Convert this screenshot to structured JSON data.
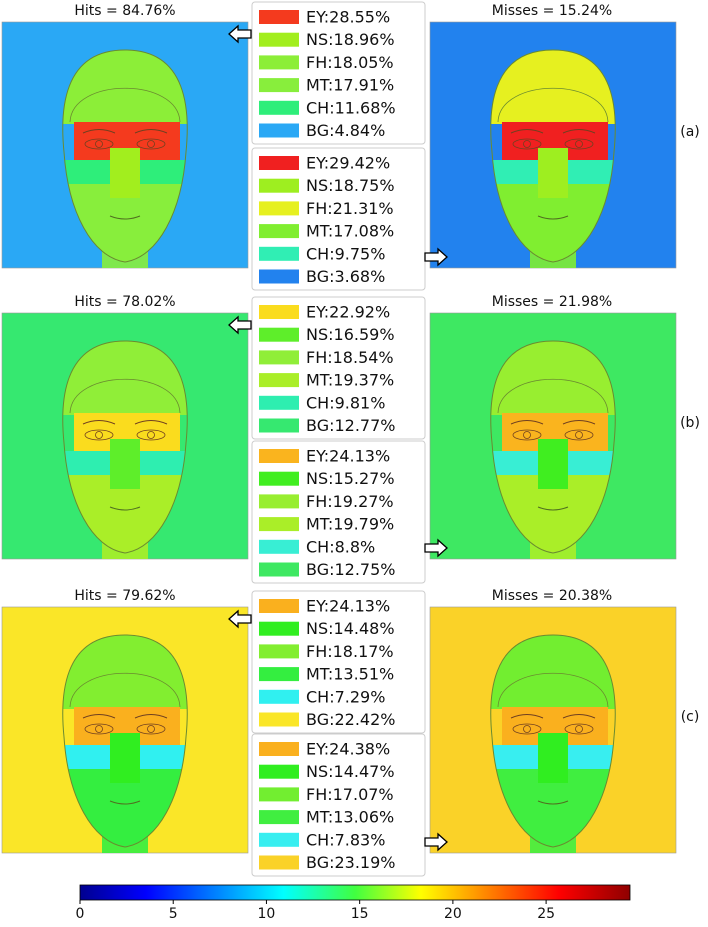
{
  "rows": [
    {
      "label": "(a)",
      "hits_title": "Hits = 84.76%",
      "misses_title": "Misses = 15.24%",
      "hits_legend": [
        {
          "label": "EY:28.55%",
          "color": "#f43a1e"
        },
        {
          "label": "NS:18.96%",
          "color": "#a2ee1e"
        },
        {
          "label": "FH:18.05%",
          "color": "#8cee38"
        },
        {
          "label": "MT:17.91%",
          "color": "#88ee3c"
        },
        {
          "label": "CH:11.68%",
          "color": "#2eee7a"
        },
        {
          "label": "BG:4.84%",
          "color": "#2aa8f5"
        }
      ],
      "misses_legend": [
        {
          "label": "EY:29.42%",
          "color": "#f02020"
        },
        {
          "label": "NS:18.75%",
          "color": "#9eee20"
        },
        {
          "label": "FH:21.31%",
          "color": "#e6f020"
        },
        {
          "label": "MT:17.08%",
          "color": "#80ee30"
        },
        {
          "label": "CH:9.75%",
          "color": "#30eeb4"
        },
        {
          "label": "BG:3.68%",
          "color": "#2282ee"
        }
      ]
    },
    {
      "label": "(b)",
      "hits_title": "Hits = 78.02%",
      "misses_title": "Misses = 21.98%",
      "hits_legend": [
        {
          "label": "EY:22.92%",
          "color": "#fadc1e"
        },
        {
          "label": "NS:16.59%",
          "color": "#5eee2a"
        },
        {
          "label": "FH:18.54%",
          "color": "#90ee38"
        },
        {
          "label": "MT:19.37%",
          "color": "#aaee28"
        },
        {
          "label": "CH:9.81%",
          "color": "#2eeeb0"
        },
        {
          "label": "BG:12.77%",
          "color": "#36e870"
        }
      ],
      "misses_legend": [
        {
          "label": "EY:24.13%",
          "color": "#fab41e"
        },
        {
          "label": "NS:15.27%",
          "color": "#40ee20"
        },
        {
          "label": "FH:19.27%",
          "color": "#98ee30"
        },
        {
          "label": "MT:19.79%",
          "color": "#aaee28"
        },
        {
          "label": "CH:8.8%",
          "color": "#38eed4"
        },
        {
          "label": "BG:12.75%",
          "color": "#3ee862"
        }
      ]
    },
    {
      "label": "(c)",
      "hits_title": "Hits = 79.62%",
      "misses_title": "Misses = 20.38%",
      "hits_legend": [
        {
          "label": "EY:24.13%",
          "color": "#fab01e"
        },
        {
          "label": "NS:14.48%",
          "color": "#30ee20"
        },
        {
          "label": "FH:18.17%",
          "color": "#82ee30"
        },
        {
          "label": "MT:13.51%",
          "color": "#34ee40"
        },
        {
          "label": "CH:7.29%",
          "color": "#30f0f0"
        },
        {
          "label": "BG:22.42%",
          "color": "#fae628"
        }
      ],
      "misses_legend": [
        {
          "label": "EY:24.38%",
          "color": "#fab01e"
        },
        {
          "label": "NS:14.47%",
          "color": "#30ee20"
        },
        {
          "label": "FH:17.07%",
          "color": "#72ee30"
        },
        {
          "label": "MT:13.06%",
          "color": "#40ee40"
        },
        {
          "label": "CH:7.83%",
          "color": "#38eef0"
        },
        {
          "label": "BG:23.19%",
          "color": "#fad228"
        }
      ]
    }
  ],
  "colorbar": {
    "lim": [
      0,
      29.5
    ],
    "ticks": [
      0,
      5,
      10,
      15,
      20,
      25
    ]
  }
}
